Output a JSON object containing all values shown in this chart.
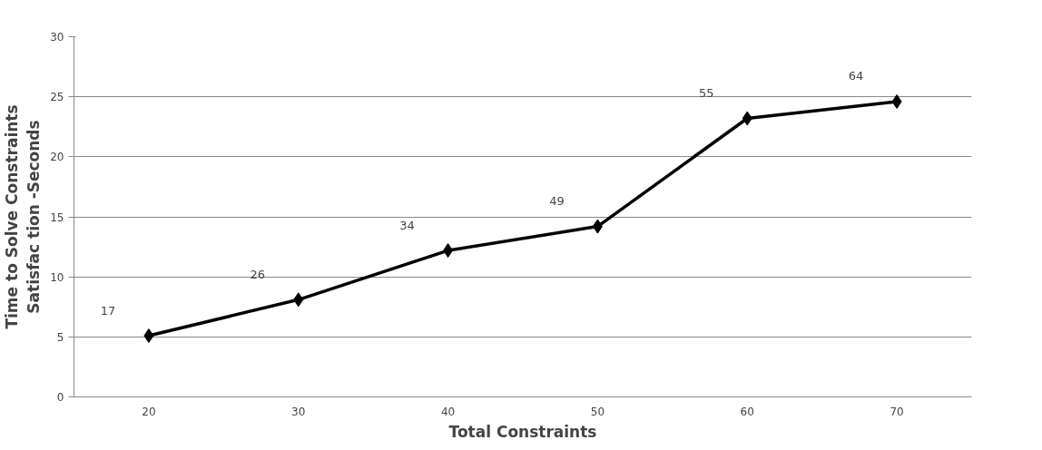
{
  "chart_data": {
    "type": "line",
    "xlabel": "Total Constraints",
    "ylabel": "Time to Solve Constraints\nSatisfac tion -Seconds",
    "categories": [
      "20",
      "30",
      "40",
      "50",
      "60",
      "70"
    ],
    "series": [
      {
        "color": "#000000",
        "values": [
          5.1,
          8.1,
          12.2,
          14.2,
          23.2,
          24.6
        ]
      }
    ],
    "annotations": [
      "17",
      "26",
      "34",
      "49",
      "55",
      "64"
    ],
    "ylim": [
      0,
      30
    ],
    "yticks": [
      0,
      5,
      10,
      15,
      20,
      25,
      30
    ],
    "grid": "y",
    "marker": "diamond",
    "line_style": "solid"
  }
}
